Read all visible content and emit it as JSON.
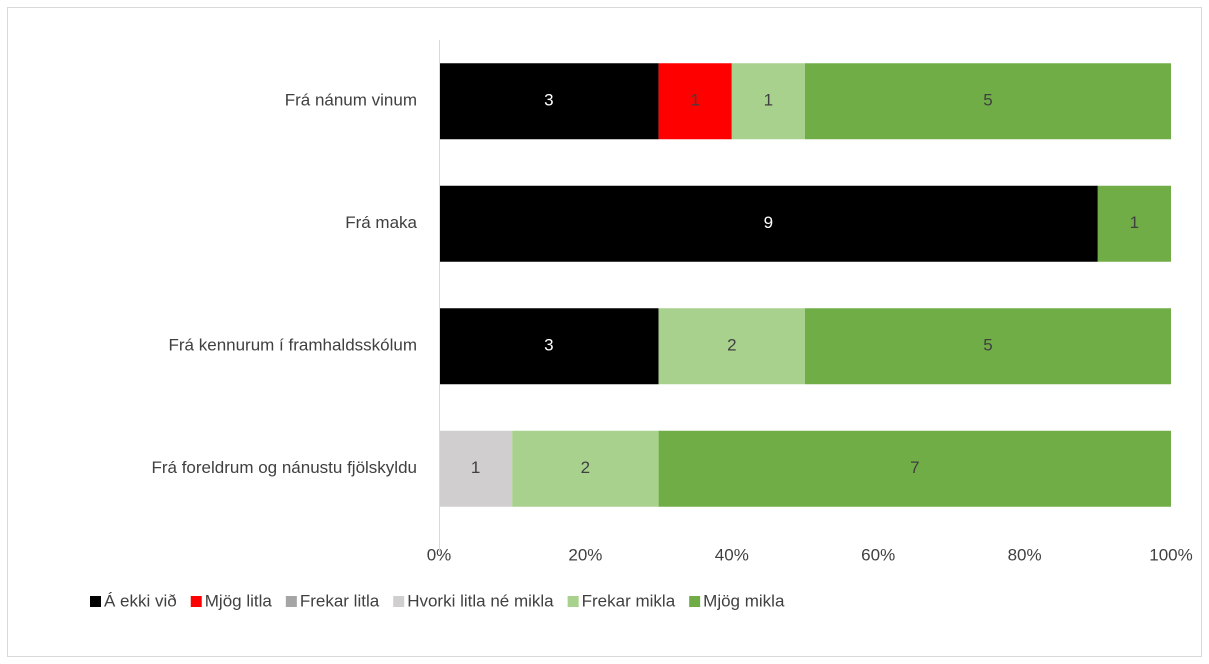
{
  "chart_data": {
    "type": "bar",
    "orientation": "horizontal",
    "stacking": "percent",
    "categories": [
      "Frá nánum vinum",
      "Frá maka",
      "Frá kennurum í framhaldsskólum",
      "Frá foreldrum og nánustu fjölskyldu"
    ],
    "series": [
      {
        "name": "Á ekki við",
        "color": "#000000",
        "values": [
          3,
          9,
          3,
          0
        ]
      },
      {
        "name": "Mjög litla",
        "color": "#ff0000",
        "values": [
          1,
          0,
          0,
          0
        ]
      },
      {
        "name": "Frekar litla",
        "color": "#a5a5a5",
        "values": [
          0,
          0,
          0,
          0
        ]
      },
      {
        "name": "Hvorki litla né mikla",
        "color": "#d0cece",
        "values": [
          0,
          0,
          0,
          1
        ]
      },
      {
        "name": "Frekar mikla",
        "color": "#a9d18e",
        "values": [
          1,
          0,
          2,
          2
        ]
      },
      {
        "name": "Mjög mikla",
        "color": "#70ad47",
        "values": [
          5,
          1,
          5,
          7
        ]
      }
    ],
    "xlim": [
      0,
      100
    ],
    "xticks": [
      {
        "value": 0,
        "label": "0%"
      },
      {
        "value": 20,
        "label": "20%"
      },
      {
        "value": 40,
        "label": "40%"
      },
      {
        "value": 60,
        "label": "60%"
      },
      {
        "value": 80,
        "label": "80%"
      },
      {
        "value": 100,
        "label": "100%"
      }
    ],
    "legend": "bottom"
  }
}
